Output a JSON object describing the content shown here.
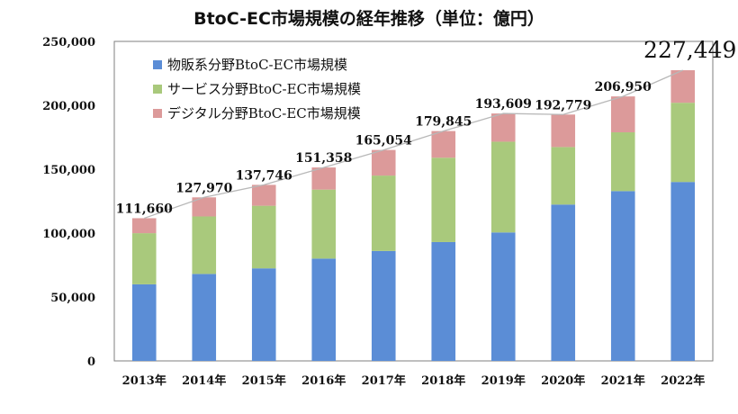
{
  "chart_data": {
    "type": "bar",
    "stacked": true,
    "title": "BtoC-EC市場規模の経年推移（単位：億円）",
    "categories": [
      "2013年",
      "2014年",
      "2015年",
      "2016年",
      "2017年",
      "2018年",
      "2019年",
      "2020年",
      "2021年",
      "2022年"
    ],
    "series": [
      {
        "name": "物販系分野BtoC-EC市場規模",
        "color": "#5b8dd6",
        "values": [
          59931,
          68043,
          72398,
          80043,
          86008,
          92992,
          100515,
          122333,
          132865,
          139997
        ]
      },
      {
        "name": "サービス分野BtoC-EC市場規模",
        "color": "#a9c97c",
        "values": [
          40000,
          45000,
          49000,
          54000,
          59000,
          66000,
          71000,
          45000,
          46000,
          62000
        ]
      },
      {
        "name": "デジタル分野BtoC-EC市場規模",
        "color": "#dc9a9a",
        "values": [
          11729,
          14927,
          16348,
          17315,
          20046,
          20853,
          22094,
          25446,
          28085,
          25452
        ]
      }
    ],
    "totals": [
      111660,
      127970,
      137746,
      151358,
      165054,
      179845,
      193609,
      192779,
      206950,
      227449
    ],
    "total_labels": [
      "111,660",
      "127,970",
      "137,746",
      "151,358",
      "165,054",
      "179,845",
      "193,609",
      "192,779",
      "206,950",
      "227,449"
    ],
    "y_ticks": [
      "0",
      "50,000",
      "100,000",
      "150,000",
      "200,000",
      "250,000"
    ],
    "ylim": [
      0,
      250000
    ],
    "grid": false,
    "legend_position": "top-left",
    "total_line_color": "#b8b8b8"
  }
}
